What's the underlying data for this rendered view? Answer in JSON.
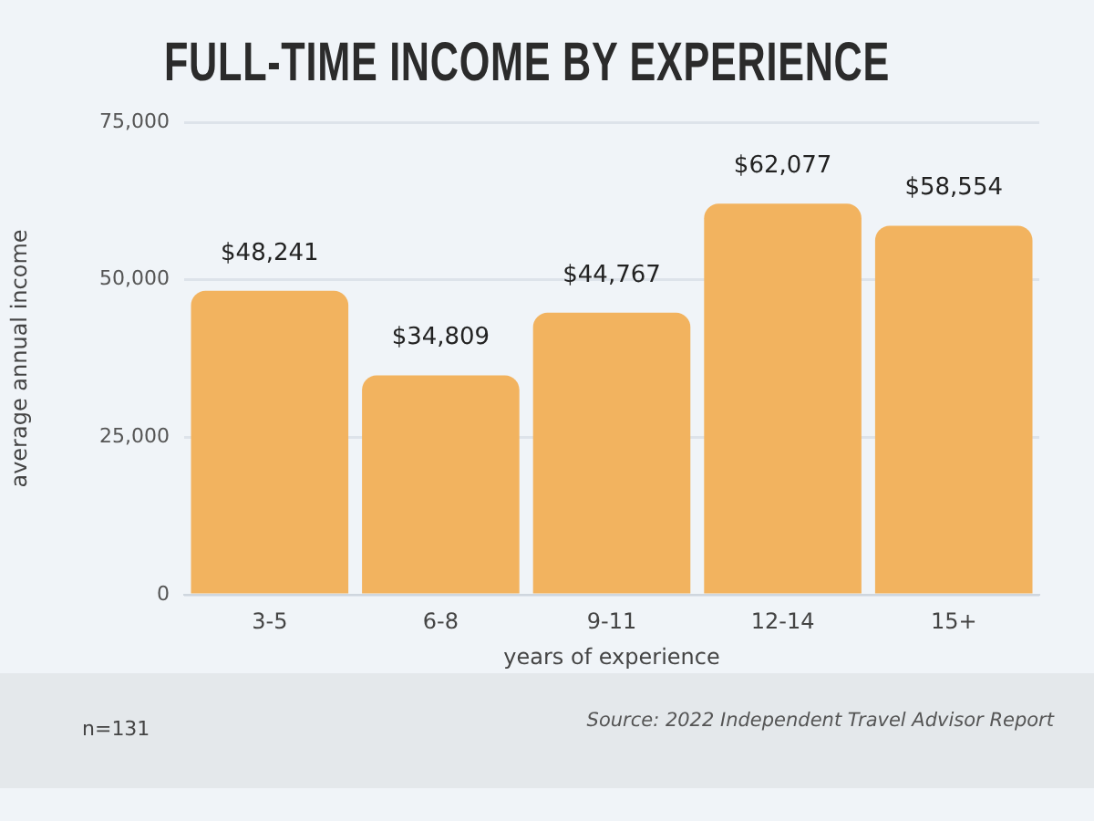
{
  "chart_data": {
    "type": "bar",
    "title": "FULL-TIME INCOME BY EXPERIENCE",
    "xlabel": "years of experience",
    "ylabel": "average annual income",
    "categories": [
      "3-5",
      "6-8",
      "9-11",
      "12-14",
      "15+"
    ],
    "values": [
      48241,
      34809,
      44767,
      62077,
      58554
    ],
    "color": "#f2b35f",
    "value_labels": [
      "$48,241",
      "$34,809",
      "$44,767",
      "$62,077",
      "$58,554"
    ],
    "ylim": [
      0,
      75000
    ],
    "yticks": [
      0,
      {
        "value": 25000,
        "label": "25,000"
      },
      {
        "value": 50000,
        "label": "50,000"
      },
      {
        "value": 75000,
        "label": "75,000"
      }
    ],
    "grid": "y",
    "annotations": [
      "n=131",
      "Source: 2022 Independent Travel Advisor Report"
    ]
  }
}
